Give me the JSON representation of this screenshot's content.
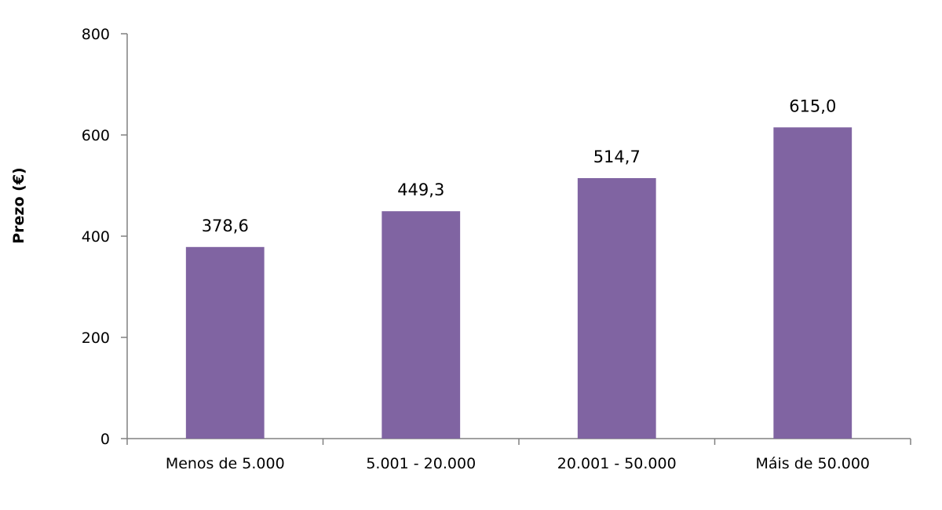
{
  "chart_data": {
    "type": "bar",
    "categories": [
      "Menos de 5.000",
      "5.001 - 20.000",
      "20.001 - 50.000",
      "Máis de 50.000"
    ],
    "values": [
      378.6,
      449.3,
      514.7,
      615.0
    ],
    "data_labels": [
      "378,6",
      "449,3",
      "514,7",
      "615,0"
    ],
    "title": "",
    "xlabel": "",
    "ylabel": "Prezo (€)",
    "ylim": [
      0,
      800
    ],
    "yticks": [
      0,
      200,
      400,
      600,
      800
    ],
    "grid": false,
    "bar_color": "#8064a2"
  }
}
